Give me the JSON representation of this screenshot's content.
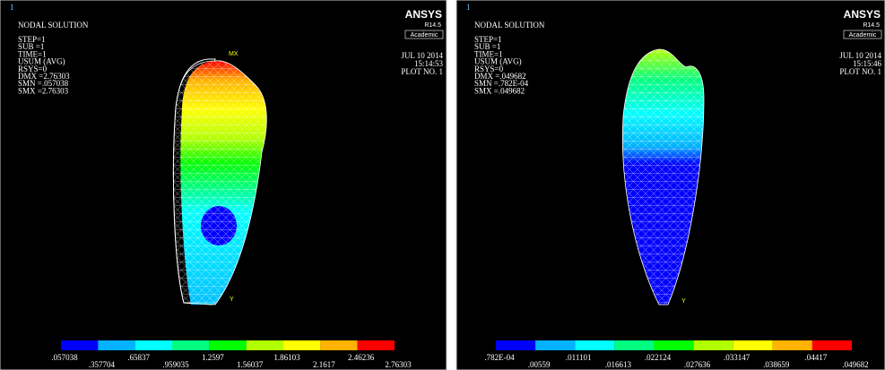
{
  "panels": [
    {
      "window_number": "1",
      "title": "NODAL SOLUTION",
      "info": [
        "STEP=1",
        "SUB =1",
        "TIME=1",
        "USUM     (AVG)",
        "RSYS=0",
        "DMX =2.76303",
        "SMN =.057038",
        "SMX =2.76303"
      ],
      "logo": "ANSYS",
      "release": "R14.5",
      "edition": "Academic",
      "date": "JUL 10 2014",
      "time": "15:14:53",
      "plot": "PLOT NO.   1",
      "markers": [
        "MX",
        "Y"
      ],
      "legend": [
        ".057038",
        ".357704",
        ".65837",
        ".959035",
        "1.2597",
        "1.56037",
        "1.86103",
        "2.1617",
        "2.46236",
        "2.76303"
      ]
    },
    {
      "window_number": "1",
      "title": "NODAL SOLUTION",
      "info": [
        "STEP=1",
        "SUB =1",
        "TIME=1",
        "USUM     (AVG)",
        "RSYS=0",
        "DMX =.049682",
        "SMN =.782E-04",
        "SMX =.049682"
      ],
      "logo": "ANSYS",
      "release": "R14.5",
      "edition": "Academic",
      "date": "JUL 10 2014",
      "time": "15:15:46",
      "plot": "PLOT NO.   1",
      "markers": [
        "Y"
      ],
      "legend": [
        ".782E-04",
        ".00559",
        ".011101",
        ".016613",
        ".022124",
        ".027636",
        ".033147",
        ".038659",
        ".04417",
        ".049682"
      ]
    }
  ]
}
